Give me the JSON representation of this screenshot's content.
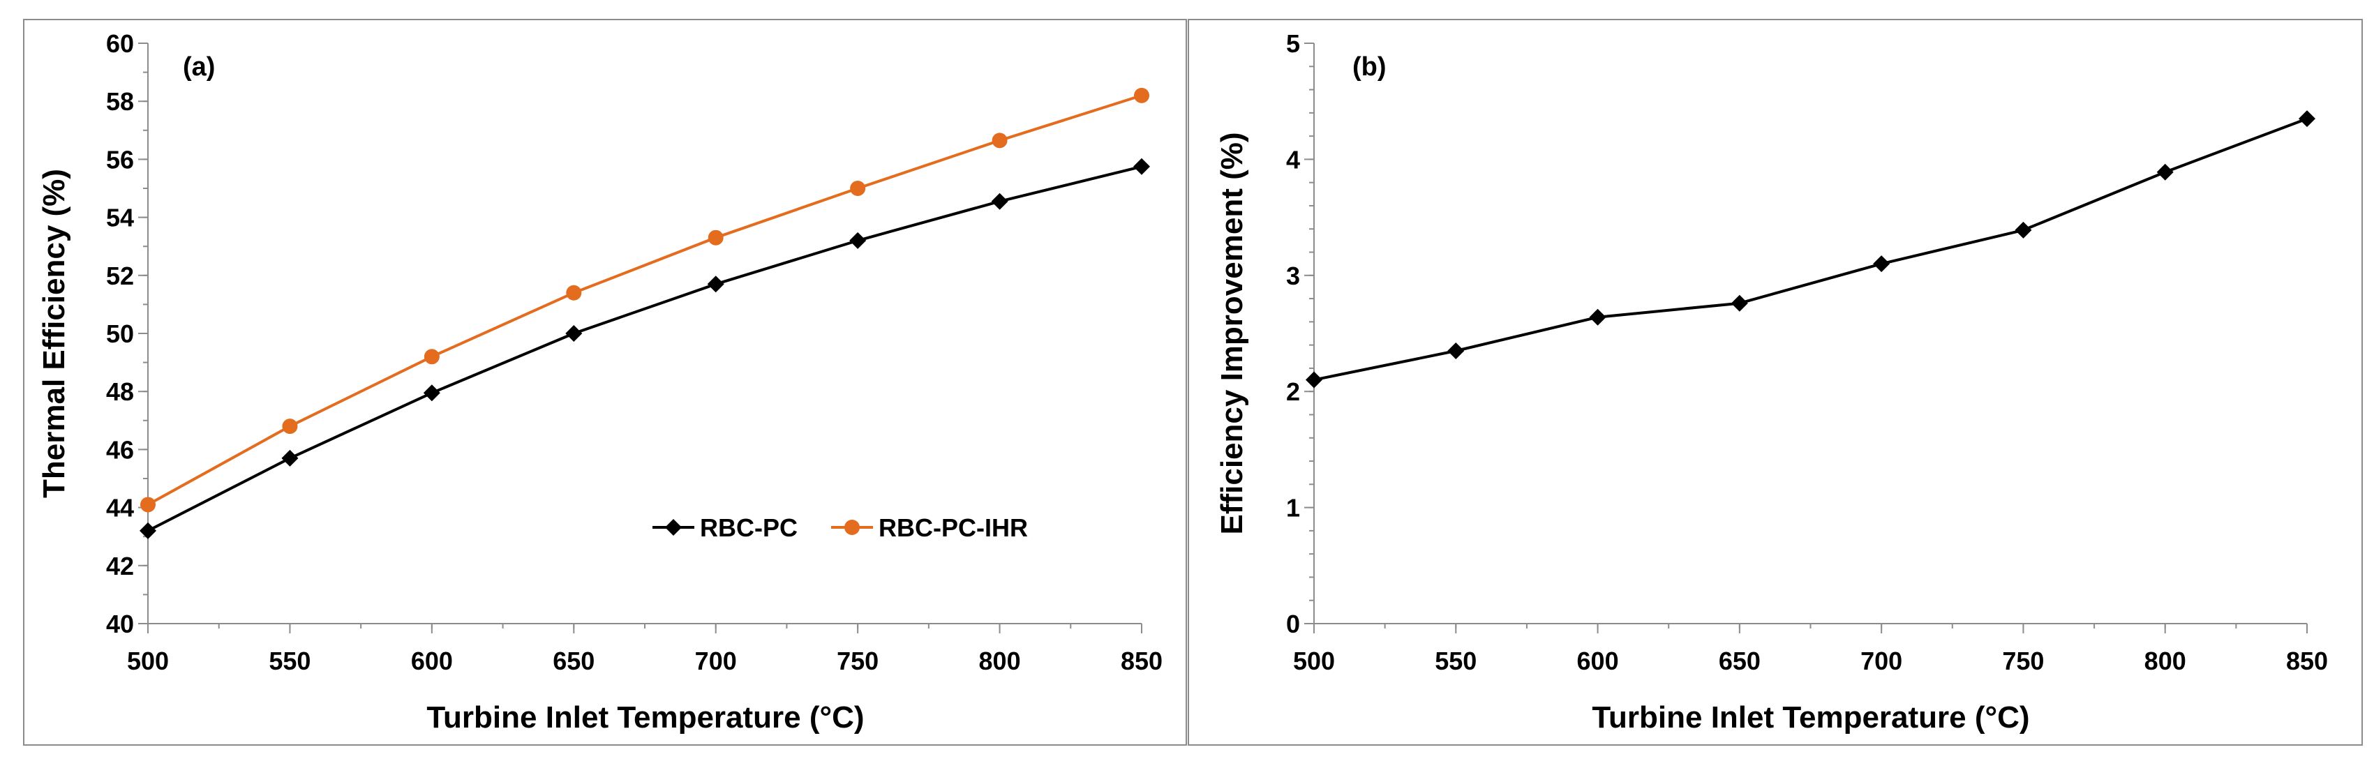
{
  "colors": {
    "black": "#000000",
    "orange": "#E46C1E",
    "frame": "#8c8c8c"
  },
  "chart_data": [
    {
      "type": "line",
      "panel_label": "(a)",
      "xlabel": "Turbine Inlet Temperature (°C)",
      "ylabel": "Thermal Efficiency (%)",
      "x": [
        500,
        550,
        600,
        650,
        700,
        750,
        800,
        850
      ],
      "xlim": [
        500,
        850
      ],
      "ylim": [
        40,
        60
      ],
      "xticks": [
        "500",
        "550",
        "600",
        "650",
        "700",
        "750",
        "800",
        "850"
      ],
      "yticks": [
        "40",
        "42",
        "44",
        "46",
        "48",
        "50",
        "52",
        "54",
        "56",
        "58",
        "60"
      ],
      "legend_position": "bottom-right",
      "series": [
        {
          "name": "RBC-PC",
          "marker": "diamond",
          "color": "#000000",
          "values": [
            43.2,
            45.7,
            47.95,
            50.0,
            51.7,
            53.2,
            54.55,
            55.75
          ]
        },
        {
          "name": "RBC-PC-IHR",
          "marker": "circle",
          "color": "#E46C1E",
          "values": [
            44.1,
            46.8,
            49.2,
            51.4,
            53.3,
            55.0,
            56.65,
            58.2
          ]
        }
      ]
    },
    {
      "type": "line",
      "panel_label": "(b)",
      "xlabel": "Turbine Inlet Temperature (°C)",
      "ylabel": "Efficiency Improvement (%)",
      "x": [
        500,
        550,
        600,
        650,
        700,
        750,
        800,
        850
      ],
      "xlim": [
        500,
        850
      ],
      "ylim": [
        0,
        5
      ],
      "xticks": [
        "500",
        "550",
        "600",
        "650",
        "700",
        "750",
        "800",
        "850"
      ],
      "yticks": [
        "0",
        "1",
        "2",
        "3",
        "4",
        "5"
      ],
      "series": [
        {
          "name": "Efficiency Improvement",
          "marker": "diamond",
          "color": "#000000",
          "values": [
            2.1,
            2.35,
            2.64,
            2.76,
            3.1,
            3.39,
            3.89,
            4.35
          ]
        }
      ]
    }
  ]
}
